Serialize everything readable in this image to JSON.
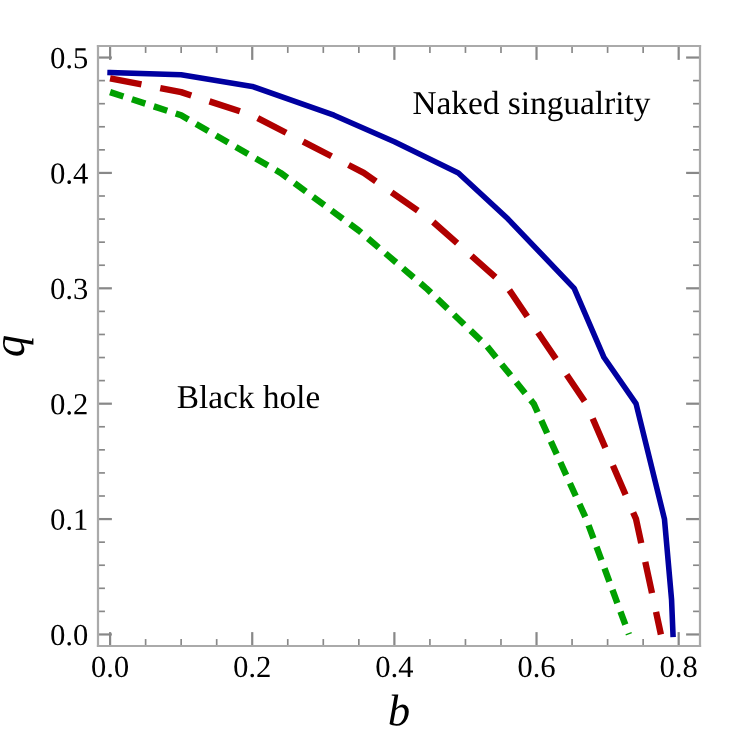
{
  "chart_data": {
    "type": "line",
    "xlabel": "b",
    "ylabel": "q",
    "xlim": [
      -0.017,
      0.83
    ],
    "ylim": [
      -0.01,
      0.51
    ],
    "xticks": [
      {
        "value": 0,
        "label": "0.0"
      },
      0.2,
      0.4,
      0.6,
      0.8
    ],
    "yticks": [
      {
        "value": 0,
        "label": "0.0"
      },
      0.1,
      0.2,
      0.3,
      0.4,
      0.5
    ],
    "grid": false,
    "legend": false,
    "annotations": [
      "Naked singualrity",
      "Black hole"
    ],
    "series": [
      {
        "color": "#0000a0",
        "line_style": "solid",
        "x": [
          0,
          0.1,
          0.2,
          0.315,
          0.4,
          0.49,
          0.56,
          0.653,
          0.695,
          0.74,
          0.78,
          0.79,
          0.792
        ],
        "values": [
          0.487,
          0.485,
          0.475,
          0.45,
          0.427,
          0.4,
          0.36,
          0.3,
          0.24,
          0.2,
          0.1,
          0.03,
          0
        ]
      },
      {
        "color": "#b00000",
        "line_style": "dashed",
        "x": [
          0,
          0.1,
          0.2,
          0.357,
          0.45,
          0.56,
          0.67,
          0.74,
          0.775
        ],
        "values": [
          0.482,
          0.47,
          0.45,
          0.4,
          0.36,
          0.3,
          0.2,
          0.1,
          0
        ]
      },
      {
        "color": "#00a000",
        "line_style": "dotted",
        "x": [
          0,
          0.1,
          0.24,
          0.35,
          0.445,
          0.53,
          0.596,
          0.67,
          0.73
        ],
        "values": [
          0.47,
          0.45,
          0.4,
          0.35,
          0.3,
          0.25,
          0.2,
          0.1,
          0
        ]
      }
    ]
  }
}
